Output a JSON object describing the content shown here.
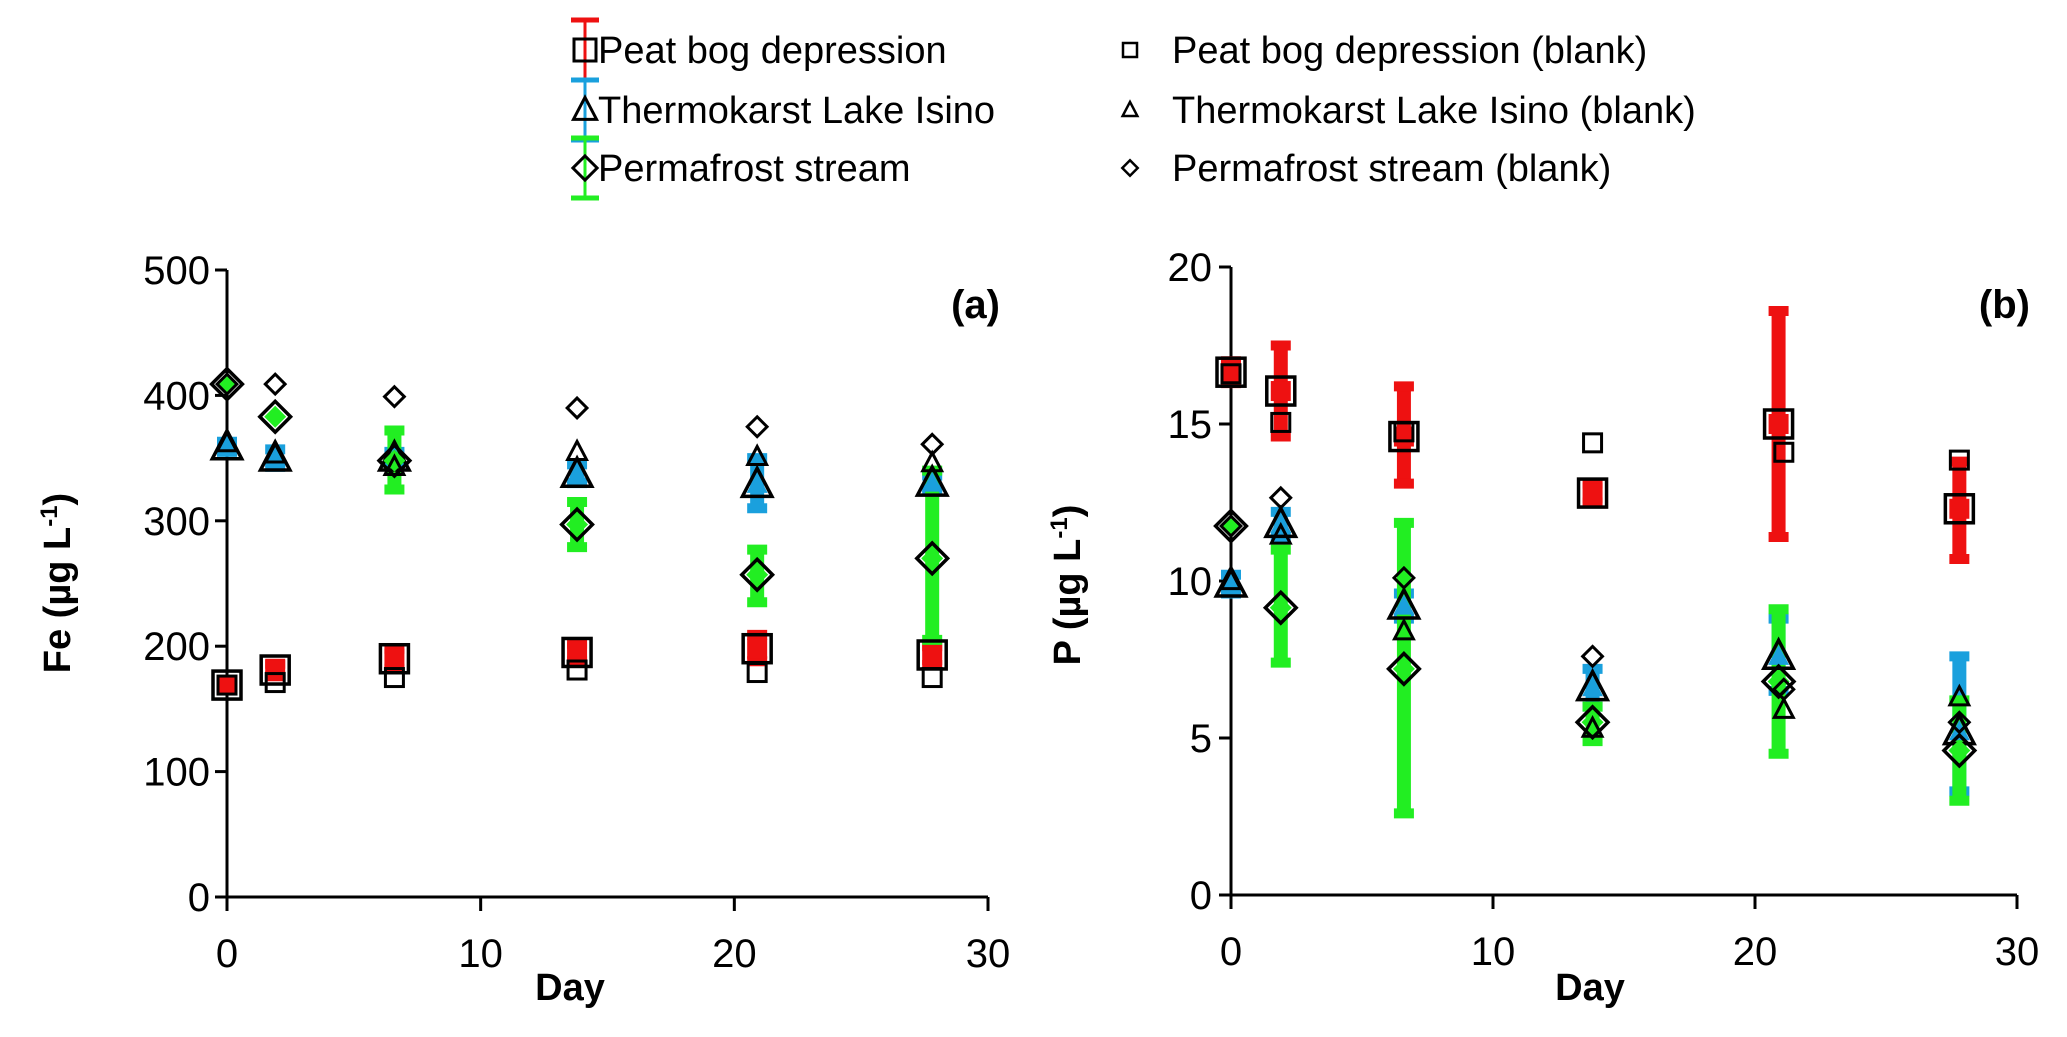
{
  "chart_data": [
    {
      "type": "scatter",
      "panel_label": "(a)",
      "xlabel": "Day",
      "ylabel_main": "Fe (µg L",
      "ylabel_sup": "-1",
      "ylabel_close": ")",
      "xlim": [
        0,
        30
      ],
      "ylim": [
        0,
        500
      ],
      "xticks": [
        0,
        10,
        20,
        30
      ],
      "yticks": [
        0,
        100,
        200,
        300,
        400,
        500
      ],
      "grid": false,
      "series": [
        {
          "name": "Peat bog depression",
          "marker": "square",
          "filled": true,
          "color": "#ee1111",
          "points": [
            {
              "x": 0,
              "y": 169,
              "err_low": 169,
              "err_high": 169
            },
            {
              "x": 1.9,
              "y": 181,
              "err_low": 176,
              "err_high": 186
            },
            {
              "x": 6.6,
              "y": 190,
              "err_low": 182,
              "err_high": 198
            },
            {
              "x": 13.8,
              "y": 195,
              "err_low": 188,
              "err_high": 202
            },
            {
              "x": 20.9,
              "y": 198,
              "err_low": 188,
              "err_high": 209
            },
            {
              "x": 27.8,
              "y": 193,
              "err_low": 185,
              "err_high": 200
            }
          ]
        },
        {
          "name": "Thermokarst Lake Isino",
          "marker": "triangle",
          "filled": true,
          "color": "#1aa0dd",
          "points": [
            {
              "x": 0,
              "y": 359,
              "err_low": 355,
              "err_high": 363
            },
            {
              "x": 1.9,
              "y": 350,
              "err_low": 343,
              "err_high": 357
            },
            {
              "x": 6.6,
              "y": 350,
              "err_low": 345,
              "err_high": 355
            },
            {
              "x": 13.8,
              "y": 337,
              "err_low": 330,
              "err_high": 345
            },
            {
              "x": 20.9,
              "y": 329,
              "err_low": 310,
              "err_high": 350
            },
            {
              "x": 27.8,
              "y": 330,
              "err_low": 325,
              "err_high": 336
            }
          ]
        },
        {
          "name": "Permafrost stream",
          "marker": "diamond",
          "filled": true,
          "color": "#22ee22",
          "points": [
            {
              "x": 0,
              "y": 409,
              "err_low": 409,
              "err_high": 409
            },
            {
              "x": 1.9,
              "y": 383,
              "err_low": 383,
              "err_high": 383
            },
            {
              "x": 6.6,
              "y": 348,
              "err_low": 325,
              "err_high": 372
            },
            {
              "x": 13.8,
              "y": 297,
              "err_low": 279,
              "err_high": 315
            },
            {
              "x": 20.9,
              "y": 257,
              "err_low": 235,
              "err_high": 277
            },
            {
              "x": 27.8,
              "y": 270,
              "err_low": 205,
              "err_high": 340
            }
          ]
        },
        {
          "name": "Peat bog depression (blank)",
          "marker": "square",
          "filled": false,
          "color": "#000000",
          "points": [
            {
              "x": 0,
              "y": 169
            },
            {
              "x": 1.9,
              "y": 171
            },
            {
              "x": 6.6,
              "y": 175
            },
            {
              "x": 13.8,
              "y": 181
            },
            {
              "x": 20.9,
              "y": 179
            },
            {
              "x": 27.8,
              "y": 175
            }
          ]
        },
        {
          "name": "Thermokarst Lake Isino (blank)",
          "marker": "triangle",
          "filled": false,
          "color": "#000000",
          "points": [
            {
              "x": 0,
              "y": 362
            },
            {
              "x": 1.9,
              "y": 353
            },
            {
              "x": 6.6,
              "y": 343
            },
            {
              "x": 13.8,
              "y": 355
            },
            {
              "x": 20.9,
              "y": 351
            },
            {
              "x": 27.8,
              "y": 346
            }
          ]
        },
        {
          "name": "Permafrost stream (blank)",
          "marker": "diamond",
          "filled": false,
          "color": "#000000",
          "points": [
            {
              "x": 0,
              "y": 409
            },
            {
              "x": 1.9,
              "y": 409
            },
            {
              "x": 6.6,
              "y": 399
            },
            {
              "x": 13.8,
              "y": 390
            },
            {
              "x": 20.9,
              "y": 375
            },
            {
              "x": 27.8,
              "y": 361
            }
          ]
        }
      ]
    },
    {
      "type": "scatter",
      "panel_label": "(b)",
      "xlabel": "Day",
      "ylabel_main": "P (µg L",
      "ylabel_sup": "-1",
      "ylabel_close": ")",
      "xlim": [
        0,
        30
      ],
      "ylim": [
        0,
        20
      ],
      "xticks": [
        0,
        10,
        20,
        30
      ],
      "yticks": [
        0,
        5,
        10,
        15,
        20
      ],
      "grid": false,
      "series": [
        {
          "name": "Peat bog depression",
          "marker": "square",
          "filled": true,
          "color": "#ee1111",
          "points": [
            {
              "x": 0,
              "y": 16.65,
              "err_low": 16.3,
              "err_high": 17.0
            },
            {
              "x": 1.9,
              "y": 16.05,
              "err_low": 14.6,
              "err_high": 17.5
            },
            {
              "x": 6.6,
              "y": 14.6,
              "err_low": 13.1,
              "err_high": 16.2
            },
            {
              "x": 13.8,
              "y": 12.8,
              "err_low": 12.5,
              "err_high": 13.1
            },
            {
              "x": 20.9,
              "y": 15.0,
              "err_low": 11.4,
              "err_high": 18.6
            },
            {
              "x": 27.8,
              "y": 12.3,
              "err_low": 10.7,
              "err_high": 13.8
            }
          ]
        },
        {
          "name": "Thermokarst Lake Isino",
          "marker": "triangle",
          "filled": true,
          "color": "#1aa0dd",
          "points": [
            {
              "x": 0,
              "y": 9.9,
              "err_low": 9.6,
              "err_high": 10.2
            },
            {
              "x": 1.9,
              "y": 11.8,
              "err_low": 11.4,
              "err_high": 12.2
            },
            {
              "x": 6.6,
              "y": 9.2,
              "err_low": 8.8,
              "err_high": 9.6
            },
            {
              "x": 13.8,
              "y": 6.6,
              "err_low": 6.0,
              "err_high": 7.2
            },
            {
              "x": 20.9,
              "y": 7.6,
              "err_low": 6.5,
              "err_high": 8.8
            },
            {
              "x": 27.8,
              "y": 5.2,
              "err_low": 3.3,
              "err_high": 7.6
            }
          ]
        },
        {
          "name": "Permafrost stream",
          "marker": "diamond",
          "filled": true,
          "color": "#22ee22",
          "points": [
            {
              "x": 0,
              "y": 11.75,
              "err_low": 11.75,
              "err_high": 11.75
            },
            {
              "x": 1.9,
              "y": 9.15,
              "err_low": 7.4,
              "err_high": 11.0
            },
            {
              "x": 6.6,
              "y": 7.2,
              "err_low": 2.6,
              "err_high": 11.85
            },
            {
              "x": 13.8,
              "y": 5.5,
              "err_low": 4.9,
              "err_high": 6.0
            },
            {
              "x": 20.9,
              "y": 6.8,
              "err_low": 4.5,
              "err_high": 9.1
            },
            {
              "x": 27.8,
              "y": 4.6,
              "err_low": 3.0,
              "err_high": 6.2
            }
          ]
        },
        {
          "name": "Peat bog depression (blank)",
          "marker": "square",
          "filled": false,
          "color": "#000000",
          "points": [
            {
              "x": 0,
              "y": 16.6
            },
            {
              "x": 1.9,
              "y": 15.05
            },
            {
              "x": 6.6,
              "y": 14.75
            },
            {
              "x": 13.8,
              "y": 14.4
            },
            {
              "x": 21.1,
              "y": 14.1
            },
            {
              "x": 27.8,
              "y": 13.85
            }
          ]
        },
        {
          "name": "Thermokarst Lake Isino (blank)",
          "marker": "triangle",
          "filled": false,
          "color": "#000000",
          "points": [
            {
              "x": 0,
              "y": 10.0
            },
            {
              "x": 1.9,
              "y": 11.45
            },
            {
              "x": 6.6,
              "y": 8.4
            },
            {
              "x": 13.8,
              "y": 5.3
            },
            {
              "x": 21.1,
              "y": 5.9
            },
            {
              "x": 27.8,
              "y": 6.3
            }
          ]
        },
        {
          "name": "Permafrost stream (blank)",
          "marker": "diamond",
          "filled": false,
          "color": "#000000",
          "points": [
            {
              "x": 0,
              "y": 11.75
            },
            {
              "x": 1.9,
              "y": 12.65
            },
            {
              "x": 6.6,
              "y": 10.1
            },
            {
              "x": 13.8,
              "y": 7.6
            },
            {
              "x": 21.1,
              "y": 6.55
            },
            {
              "x": 27.8,
              "y": 5.5
            }
          ]
        }
      ]
    }
  ],
  "legend": {
    "placement": "top-center",
    "items": [
      {
        "label": "Peat bog depression",
        "marker": "square",
        "errorbar_color": "#ee1111",
        "blank": false
      },
      {
        "label": "Thermokarst Lake Isino",
        "marker": "triangle",
        "errorbar_color": "#1aa0dd",
        "blank": false
      },
      {
        "label": "Permafrost stream",
        "marker": "diamond",
        "errorbar_color": "#22ee22",
        "blank": false
      },
      {
        "label": "Peat bog depression (blank)",
        "marker": "square",
        "blank": true
      },
      {
        "label": "Thermokarst Lake Isino (blank)",
        "marker": "triangle",
        "blank": true
      },
      {
        "label": "Permafrost stream (blank)",
        "marker": "diamond",
        "blank": true
      }
    ]
  }
}
